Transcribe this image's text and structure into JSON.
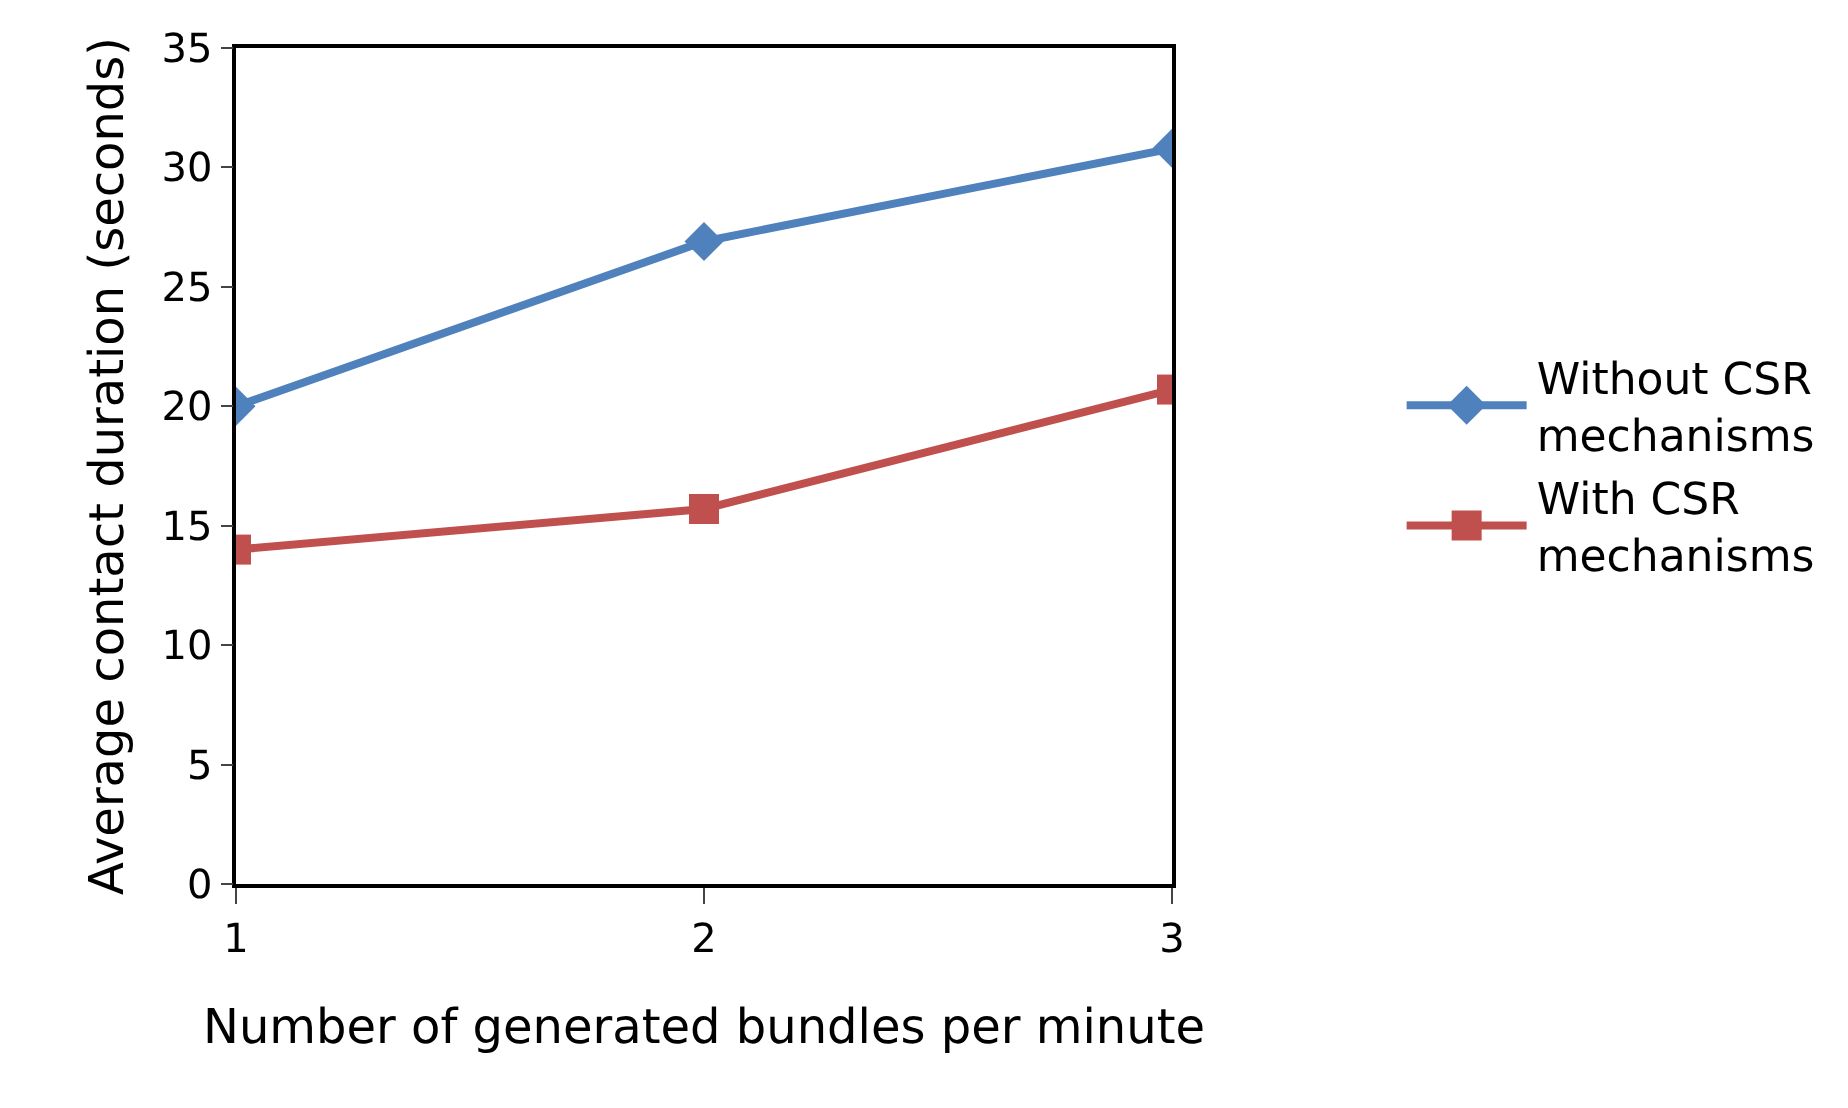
{
  "chart_data": {
    "type": "line",
    "xlabel": "Number of generated bundles per minute",
    "ylabel": "Average contact duration (seconds)",
    "categories": [
      "1",
      "2",
      "3"
    ],
    "series": [
      {
        "name": "Without CSR mechanisms",
        "color": "#4f81bd",
        "marker": "diamond",
        "values": [
          20.0,
          26.9,
          30.8
        ]
      },
      {
        "name": "With CSR mechanisms",
        "color": "#c0504d",
        "marker": "square",
        "values": [
          14.0,
          15.7,
          20.7
        ]
      }
    ],
    "ylim": [
      0,
      35
    ],
    "yticks": [
      0,
      5,
      10,
      15,
      20,
      25,
      30,
      35
    ],
    "legend": "right",
    "line_style": "solid"
  }
}
